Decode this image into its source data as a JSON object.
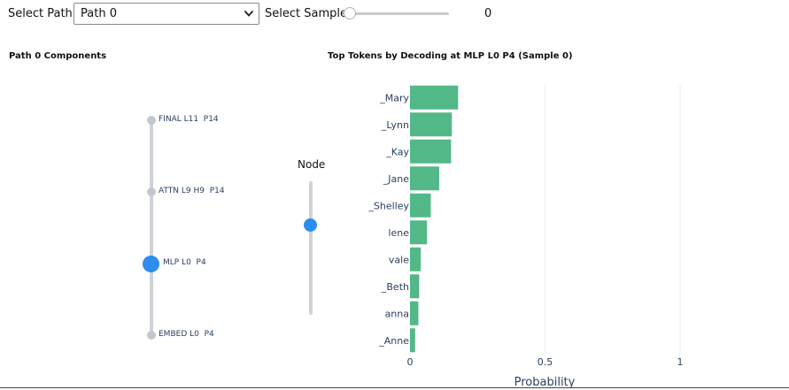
{
  "controls": {
    "path_label": "Select Path:",
    "path_value": "Path 0",
    "sample_label": "Select Sample:",
    "sample_value": "0",
    "sample_position": 0
  },
  "components_panel": {
    "title": "Path 0 Components",
    "nodes": [
      {
        "label": "FINAL L11  P14",
        "selected": false
      },
      {
        "label": "ATTN L9 H9  P14",
        "selected": false
      },
      {
        "label": "MLP L0  P4",
        "selected": true
      },
      {
        "label": "EMBED L0  P4",
        "selected": false
      }
    ],
    "node_slider": {
      "label": "Node",
      "level": 0.67
    }
  },
  "colors": {
    "bar": "#53b888",
    "selected_node": "#2d8cf0",
    "node": "#c2c8cf",
    "track": "#cfd3d7",
    "axis_text": "#2a3f5f"
  },
  "chart_data": {
    "type": "bar",
    "orientation": "horizontal",
    "title": "Top Tokens by Decoding at MLP L0 P4 (Sample 0)",
    "xlabel": "Probability",
    "ylabel": "",
    "xlim": [
      0,
      1.4
    ],
    "xticks": [
      0,
      0.5,
      1
    ],
    "xtick_labels": [
      "0",
      "0.5",
      "1"
    ],
    "grid": true,
    "categories": [
      "_Mary",
      "_Lynn",
      "_Kay",
      "_Jane",
      "_Shelley",
      "lene",
      "vale",
      "_Beth",
      "anna",
      "_Anne"
    ],
    "values": [
      0.178,
      0.155,
      0.152,
      0.108,
      0.077,
      0.063,
      0.04,
      0.034,
      0.031,
      0.019
    ]
  }
}
